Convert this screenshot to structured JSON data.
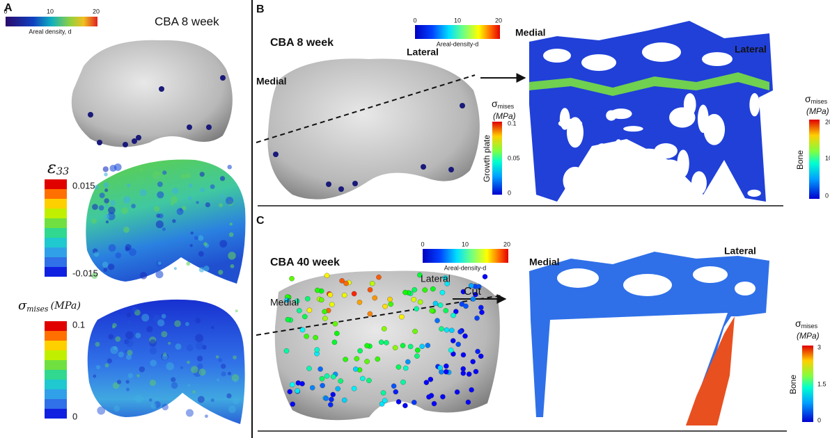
{
  "panel_a": {
    "label": "A",
    "colorbar": {
      "ticks": [
        "0",
        "10",
        "20"
      ],
      "title": "Areal density, d"
    },
    "title": "CBA 8 week",
    "strain": {
      "symbol": "ε",
      "subscript": "33",
      "max": "0.015",
      "min": "-0.015"
    },
    "stress": {
      "symbol": "σ",
      "subscript": "mises",
      "unit": "(MPa)",
      "max": "0.1",
      "min": "0"
    }
  },
  "panel_b": {
    "label": "B",
    "title": "CBA 8 week",
    "medial": "Medial",
    "lateral": "Lateral",
    "colorbar": {
      "ticks": [
        "0",
        "10",
        "20"
      ],
      "title": "Areal-density-d"
    },
    "section_medial": "Medial",
    "section_lateral": "Lateral",
    "growth_plate": {
      "symbol": "σ",
      "subscript": "mises",
      "unit": "(MPa)",
      "ticks": [
        "0.1",
        "0.05",
        "0"
      ],
      "title": "Growth plate"
    },
    "bone": {
      "symbol": "σ",
      "subscript": "mises",
      "unit": "(MPa)",
      "ticks": [
        "20",
        "10",
        "0"
      ],
      "title": "Bone"
    }
  },
  "panel_c": {
    "label": "C",
    "title": "CBA 40 week",
    "medial": "Medial",
    "lateral": "Lateral",
    "cut": "Cut",
    "colorbar": {
      "ticks": [
        "0",
        "10",
        "20"
      ],
      "title": "Areal-density-d"
    },
    "section_medial": "Medial",
    "section_lateral": "Lateral",
    "bone": {
      "symbol": "σ",
      "subscript": "mises",
      "unit": "(MPa)",
      "ticks": [
        "3",
        "1.5",
        "0"
      ],
      "title": "Bone"
    }
  }
}
